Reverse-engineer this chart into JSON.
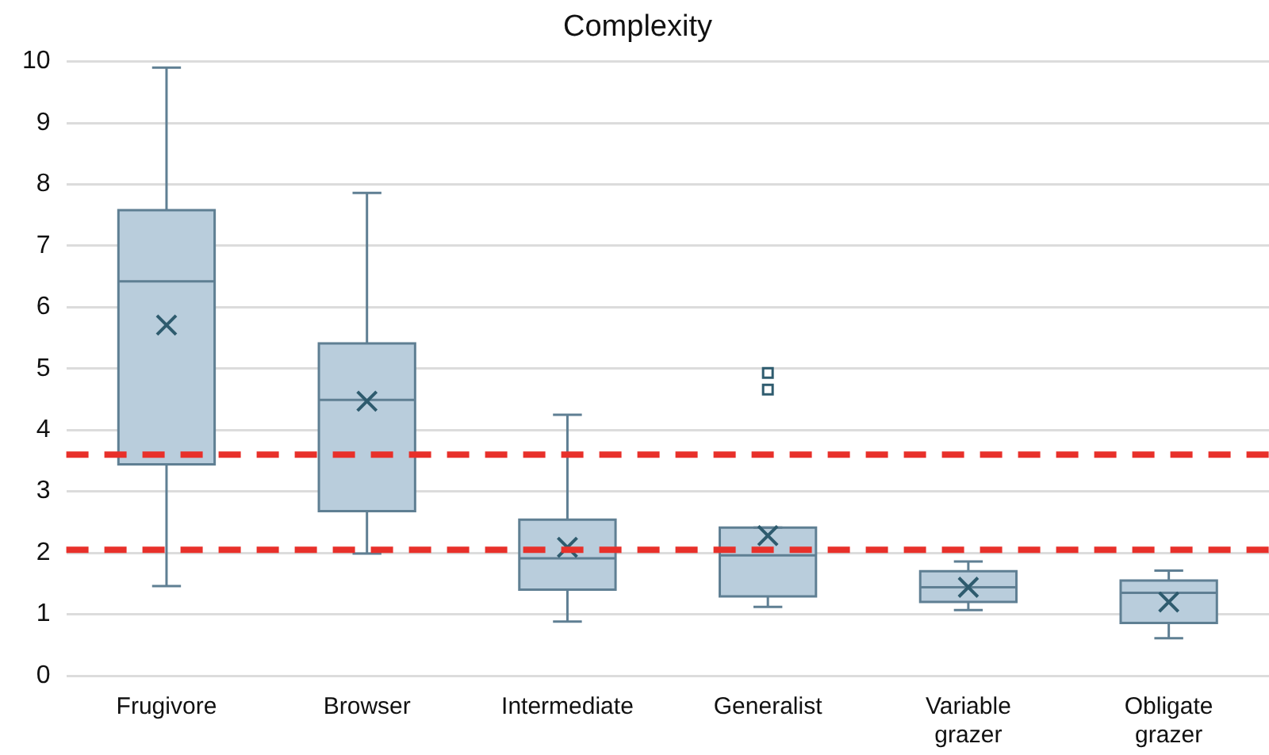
{
  "chart_data": {
    "type": "box",
    "title": "Complexity",
    "categories": [
      "Frugivore",
      "Browser",
      "Intermediate",
      "Generalist",
      "Variable grazer",
      "Obligate grazer"
    ],
    "color": "#b9cddc",
    "boxes": [
      {
        "low": 1.46,
        "q1": 3.44,
        "median": 6.42,
        "q3": 7.58,
        "high": 9.9,
        "mean": 5.71
      },
      {
        "low": 1.99,
        "q1": 2.68,
        "median": 4.49,
        "q3": 5.41,
        "high": 7.86,
        "mean": 4.47
      },
      {
        "low": 0.88,
        "q1": 1.4,
        "median": 1.91,
        "q3": 2.54,
        "high": 4.25,
        "mean": 2.09
      },
      {
        "low": 1.12,
        "q1": 1.29,
        "median": 1.96,
        "q3": 2.41,
        "high": 2.41,
        "mean": 2.28,
        "outliers": [
          4.66,
          4.93
        ]
      },
      {
        "low": 1.07,
        "q1": 1.2,
        "median": 1.44,
        "q3": 1.7,
        "high": 1.86,
        "mean": 1.44
      },
      {
        "low": 0.61,
        "q1": 0.86,
        "median": 1.35,
        "q3": 1.55,
        "high": 1.71,
        "mean": 1.2
      }
    ],
    "ylim": [
      0,
      10
    ],
    "yticks": [
      0,
      1,
      2,
      3,
      4,
      5,
      6,
      7,
      8,
      9,
      10
    ],
    "grid": "y",
    "legend": false,
    "ref_lines": [
      {
        "axis": "y",
        "value": 3.6,
        "color": "#e8302a",
        "line_style": "dashed"
      },
      {
        "axis": "y",
        "value": 2.05,
        "color": "#e8302a",
        "line_style": "dashed"
      }
    ]
  }
}
